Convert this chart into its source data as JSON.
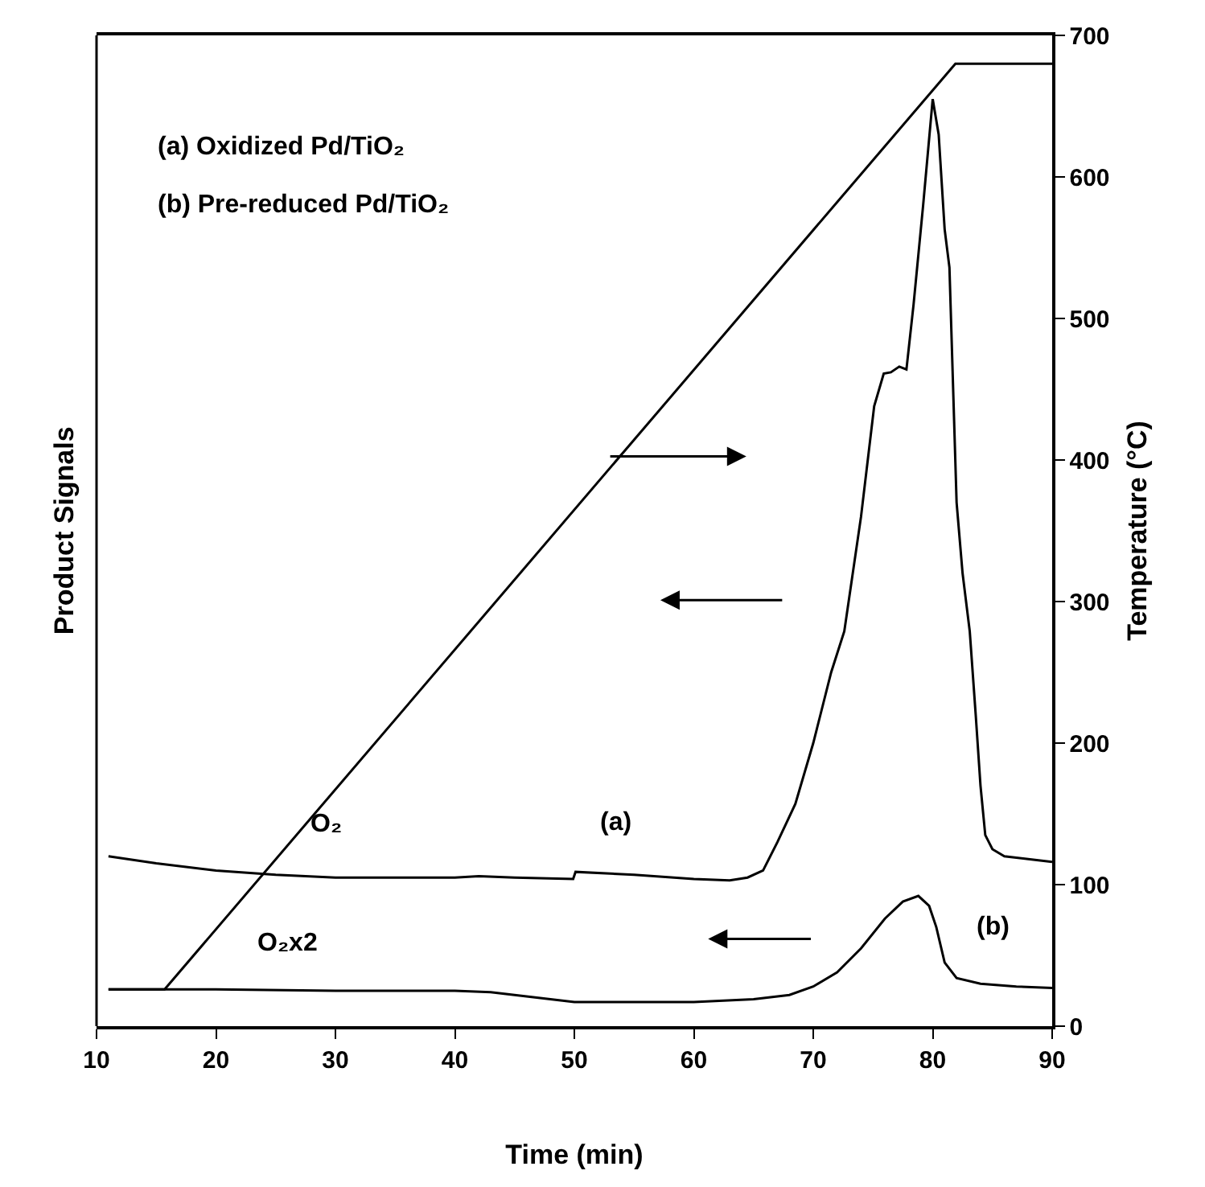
{
  "chart_data": {
    "type": "line",
    "xlabel": "Time (min)",
    "ylabel": "Product Signals",
    "y2label": "Temperature (°C)",
    "xlim": [
      10,
      90
    ],
    "xticks": [
      10,
      20,
      30,
      40,
      50,
      60,
      70,
      80,
      90
    ],
    "y2lim": [
      0,
      700
    ],
    "y2ticks": [
      0,
      100,
      200,
      300,
      400,
      500,
      600,
      700
    ],
    "marker": "none",
    "line_style": "solid",
    "series": [
      {
        "color": "#000000",
        "axis": "y2",
        "x": [
          11,
          15.7,
          81.9,
          90
        ],
        "values": [
          26,
          26,
          680,
          680
        ]
      },
      {
        "color": "#000000",
        "axis": "y2",
        "x": [
          11,
          15,
          20,
          25,
          30,
          35,
          40,
          42,
          45,
          49.9,
          50.1,
          55,
          60,
          63,
          64.5,
          65.8,
          67,
          68.5,
          70,
          71.5,
          72.6,
          74,
          75.1,
          75.9,
          76.5,
          77.2,
          77.8,
          78.4,
          79.2,
          80.0,
          80.5,
          81.0,
          81.4,
          82.0,
          82.5,
          83.1,
          83.6,
          84.0,
          84.4,
          85.0,
          86,
          88,
          90
        ],
        "values": [
          120,
          115,
          110,
          107,
          105,
          105,
          105,
          106,
          105,
          104,
          109,
          107,
          104,
          103,
          105,
          110,
          130,
          157,
          200,
          250,
          279,
          360,
          438,
          461,
          462,
          466,
          464,
          510,
          580,
          655,
          630,
          563,
          536,
          370,
          320,
          279,
          220,
          170,
          135,
          125,
          120,
          118,
          116
        ]
      },
      {
        "color": "#000000",
        "axis": "y2",
        "x": [
          11,
          20,
          30,
          40,
          43,
          45,
          48,
          50,
          55,
          60,
          65,
          68,
          70,
          72,
          74,
          76,
          77.5,
          78.8,
          79.7,
          80.3,
          81,
          82,
          84,
          87,
          90
        ],
        "values": [
          26,
          26,
          25,
          25,
          24,
          22,
          19,
          17,
          17,
          17,
          19,
          22,
          28,
          38,
          55,
          76,
          88,
          92,
          85,
          70,
          45,
          34,
          30,
          28,
          27
        ]
      }
    ],
    "annotations": [
      "(a) Oxidized Pd/TiO₂",
      "(b) Pre-reduced Pd/TiO₂",
      "O₂",
      "(a)",
      "O₂x2",
      "(b)"
    ]
  }
}
